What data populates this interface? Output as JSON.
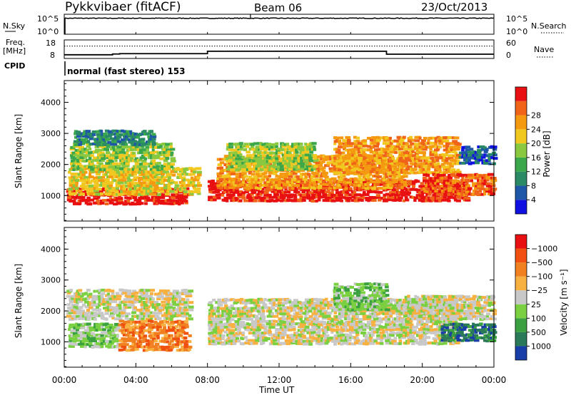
{
  "header": {
    "station": "Pykkvibaer (fitACF)",
    "beam": "Beam 06",
    "date": "23/Oct/2013"
  },
  "cpid_label": "CPID",
  "cpid_text": "normal (fast stereo) 153",
  "chart_data": [
    {
      "type": "line",
      "panel": "noise",
      "left_label": "N.Sky",
      "right_label": "N.Search",
      "left_ticks": [
        "10^5",
        "10^0"
      ],
      "right_ticks": [
        "10^5",
        "10^0"
      ],
      "yscale": "log",
      "ylim": [
        1,
        100000
      ],
      "x": [
        0,
        24
      ],
      "series": [
        {
          "name": "N.Sky",
          "style": "solid",
          "note_values": "approx 10^4 throughout"
        },
        {
          "name": "N.Search",
          "style": "dotted"
        }
      ]
    },
    {
      "type": "line",
      "panel": "frequency",
      "left_label_top": "Freq.",
      "left_label_bottom": "[MHz]",
      "right_label": "Nave",
      "left_ticks": [
        "18",
        "8"
      ],
      "right_ticks": [
        "60",
        "0"
      ],
      "ylim_left": [
        8,
        18
      ],
      "ylim_right": [
        0,
        60
      ],
      "freq_steps": [
        {
          "x": 0,
          "y": 10.0
        },
        {
          "x": 2.7,
          "y": 10.4
        },
        {
          "x": 3.1,
          "y": 10.6
        },
        {
          "x": 8.0,
          "y": 11.9
        },
        {
          "x": 18.0,
          "y": 10.3
        },
        {
          "x": 24.0,
          "y": 10.3
        }
      ],
      "nave_level": 40
    },
    {
      "type": "heatmap",
      "panel": "power",
      "ylabel": "Slant Range [km]",
      "yticks": [
        1000,
        2000,
        3000,
        4000
      ],
      "ylim": [
        180,
        4700
      ],
      "xlim": [
        0,
        24
      ],
      "colorbar_label": "Power [dB]",
      "colorbar_ticks": [
        "4",
        "8",
        "12",
        "16",
        "20",
        "24",
        "28"
      ],
      "colorbar_colors": [
        "#1010e0",
        "#1e56a8",
        "#2a8a66",
        "#3aa84a",
        "#8ac840",
        "#f0c820",
        "#f59a10",
        "#f0641a",
        "#e81010"
      ],
      "regions": [
        {
          "x": [
            0.1,
            6.8
          ],
          "range": [
            700,
            1250
          ],
          "level": 8
        },
        {
          "x": [
            0.2,
            7.5
          ],
          "range": [
            1000,
            1900
          ],
          "level": 5
        },
        {
          "x": [
            0.3,
            6.0
          ],
          "range": [
            1800,
            2700
          ],
          "level": 4
        },
        {
          "x": [
            0.5,
            5.0
          ],
          "range": [
            2600,
            3100
          ],
          "level": 2
        },
        {
          "x": [
            8.0,
            22.5
          ],
          "range": [
            800,
            1500
          ],
          "level": 8
        },
        {
          "x": [
            8.5,
            19.0
          ],
          "range": [
            1200,
            2300
          ],
          "level": 6
        },
        {
          "x": [
            9.0,
            14.0
          ],
          "range": [
            1800,
            2700
          ],
          "level": 4
        },
        {
          "x": [
            15.0,
            22.0
          ],
          "range": [
            1700,
            2900
          ],
          "level": 6
        },
        {
          "x": [
            20.0,
            24.0
          ],
          "range": [
            1000,
            1700
          ],
          "level": 7
        },
        {
          "x": [
            22.0,
            24.0
          ],
          "range": [
            2000,
            2600
          ],
          "level": 1
        }
      ]
    },
    {
      "type": "heatmap",
      "panel": "velocity",
      "ylabel": "Slant Range [km]",
      "yticks": [
        1000,
        2000,
        3000,
        4000
      ],
      "ylim": [
        180,
        4700
      ],
      "xlim": [
        0,
        24
      ],
      "xticks": [
        "00:00",
        "04:00",
        "08:00",
        "12:00",
        "16:00",
        "20:00",
        "00:00"
      ],
      "xlabel": "Time UT",
      "colorbar_label": "Velocity [m s⁻¹]",
      "colorbar_ticks": [
        "1000",
        "500",
        "100",
        "25",
        "−25",
        "−100",
        "−500",
        "−1000"
      ],
      "colorbar_colors": [
        "#1a3ea8",
        "#2a7a5a",
        "#3aa040",
        "#7ad040",
        "#c8c8c8",
        "#f8b040",
        "#f08020",
        "#f05010",
        "#e81010"
      ],
      "regions": [
        {
          "x": [
            0.1,
            7.0
          ],
          "range": [
            1700,
            2700
          ],
          "level": 4
        },
        {
          "x": [
            0.2,
            3.0
          ],
          "range": [
            800,
            1600
          ],
          "level": 3
        },
        {
          "x": [
            3.0,
            7.0
          ],
          "range": [
            700,
            1700
          ],
          "level": 6
        },
        {
          "x": [
            8.0,
            22.0
          ],
          "range": [
            900,
            2400
          ],
          "level": 4
        },
        {
          "x": [
            15.0,
            18.0
          ],
          "range": [
            2000,
            2900
          ],
          "level": 3
        },
        {
          "x": [
            21.0,
            24.0
          ],
          "range": [
            1000,
            1600
          ],
          "level": 1
        },
        {
          "x": [
            19.0,
            24.0
          ],
          "range": [
            1700,
            2500
          ],
          "level": 4
        }
      ]
    }
  ]
}
